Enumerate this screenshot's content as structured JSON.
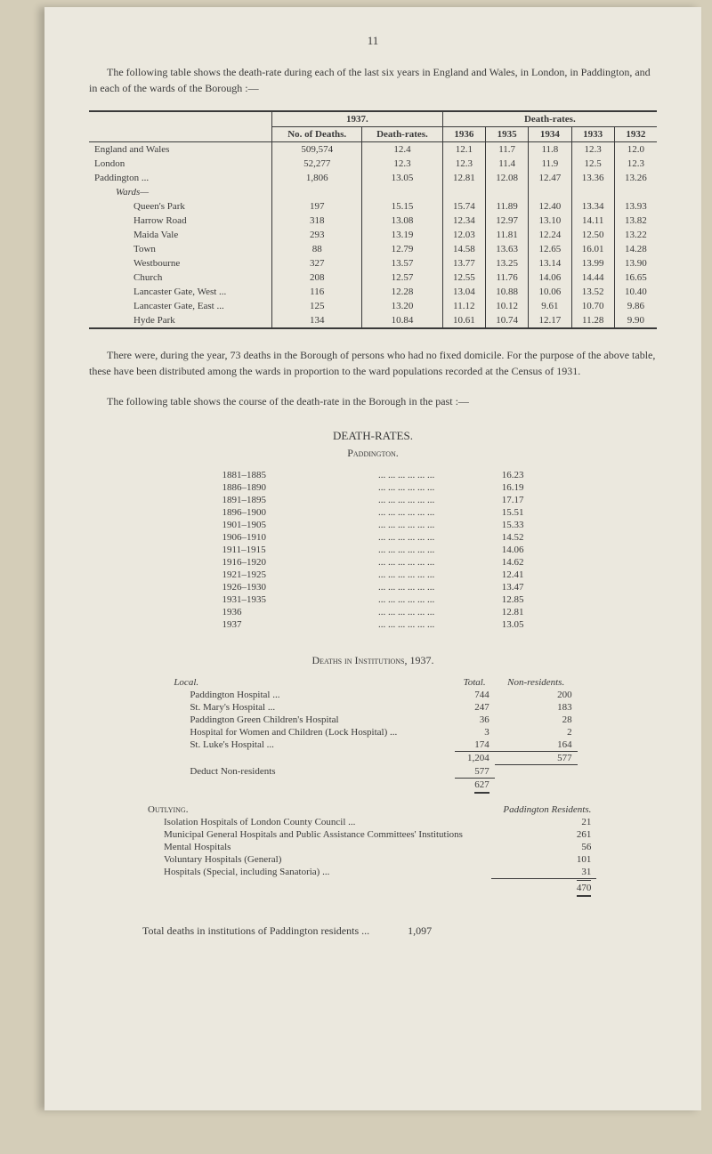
{
  "page_number": "11",
  "intro": "The following table shows the death-rate during each of the last six years in England and Wales, in London, in Paddington, and in each of the wards of the Borough :—",
  "t1": {
    "group1937": "1937.",
    "groupDR": "Death-rates.",
    "cols": [
      "No. of Deaths.",
      "Death-rates.",
      "1936",
      "1935",
      "1934",
      "1933",
      "1932"
    ],
    "wards_label": "Wards—",
    "rows": [
      {
        "lbl": "England and Wales",
        "v": [
          "509,574",
          "12.4",
          "12.1",
          "11.7",
          "11.8",
          "12.3",
          "12.0"
        ]
      },
      {
        "lbl": "London",
        "v": [
          "52,277",
          "12.3",
          "12.3",
          "11.4",
          "11.9",
          "12.5",
          "12.3"
        ]
      },
      {
        "lbl": "Paddington ...",
        "v": [
          "1,806",
          "13.05",
          "12.81",
          "12.08",
          "12.47",
          "13.36",
          "13.26"
        ]
      }
    ],
    "wards": [
      {
        "lbl": "Queen's Park",
        "v": [
          "197",
          "15.15",
          "15.74",
          "11.89",
          "12.40",
          "13.34",
          "13.93"
        ]
      },
      {
        "lbl": "Harrow Road",
        "v": [
          "318",
          "13.08",
          "12.34",
          "12.97",
          "13.10",
          "14.11",
          "13.82"
        ]
      },
      {
        "lbl": "Maida Vale",
        "v": [
          "293",
          "13.19",
          "12.03",
          "11.81",
          "12.24",
          "12.50",
          "13.22"
        ]
      },
      {
        "lbl": "Town",
        "v": [
          "88",
          "12.79",
          "14.58",
          "13.63",
          "12.65",
          "16.01",
          "14.28"
        ]
      },
      {
        "lbl": "Westbourne",
        "v": [
          "327",
          "13.57",
          "13.77",
          "13.25",
          "13.14",
          "13.99",
          "13.90"
        ]
      },
      {
        "lbl": "Church",
        "v": [
          "208",
          "12.57",
          "12.55",
          "11.76",
          "14.06",
          "14.44",
          "16.65"
        ]
      },
      {
        "lbl": "Lancaster Gate, West ...",
        "v": [
          "116",
          "12.28",
          "13.04",
          "10.88",
          "10.06",
          "13.52",
          "10.40"
        ]
      },
      {
        "lbl": "Lancaster Gate, East ...",
        "v": [
          "125",
          "13.20",
          "11.12",
          "10.12",
          "9.61",
          "10.70",
          "9.86"
        ]
      },
      {
        "lbl": "Hyde Park",
        "v": [
          "134",
          "10.84",
          "10.61",
          "10.74",
          "12.17",
          "11.28",
          "9.90"
        ]
      }
    ]
  },
  "para2": "There were, during the year, 73 deaths in the Borough of persons who had no fixed domicile. For the purpose of the above table, these have been distributed among the wards in proportion to the ward populations recorded at the Census of 1931.",
  "para3": "The following table shows the course of the death-rate in the Borough in the past :—",
  "dr_title": "DEATH-RATES.",
  "dr_sub": "Paddington.",
  "t2": [
    {
      "p": "1881–1885",
      "v": "16.23"
    },
    {
      "p": "1886–1890",
      "v": "16.19"
    },
    {
      "p": "1891–1895",
      "v": "17.17"
    },
    {
      "p": "1896–1900",
      "v": "15.51"
    },
    {
      "p": "1901–1905",
      "v": "15.33"
    },
    {
      "p": "1906–1910",
      "v": "14.52"
    },
    {
      "p": "1911–1915",
      "v": "14.06"
    },
    {
      "p": "1916–1920",
      "v": "14.62"
    },
    {
      "p": "1921–1925",
      "v": "12.41"
    },
    {
      "p": "1926–1930",
      "v": "13.47"
    },
    {
      "p": "1931–1935",
      "v": "12.85"
    },
    {
      "p": "1936",
      "v": "12.81"
    },
    {
      "p": "1937",
      "v": "13.05"
    }
  ],
  "inst_title": "Deaths in Institutions, 1937.",
  "t3": {
    "loc": "Local.",
    "tot": "Total.",
    "non": "Non-residents.",
    "rows": [
      {
        "l": "Paddington Hospital ...",
        "t": "744",
        "n": "200"
      },
      {
        "l": "St. Mary's Hospital ...",
        "t": "247",
        "n": "183"
      },
      {
        "l": "Paddington Green Children's Hospital",
        "t": "36",
        "n": "28"
      },
      {
        "l": "Hospital for Women and Children (Lock Hospital) ...",
        "t": "3",
        "n": "2"
      },
      {
        "l": "St. Luke's Hospital ...",
        "t": "174",
        "n": "164"
      }
    ],
    "subtotal": {
      "t": "1,204",
      "n": "577"
    },
    "deduct": {
      "l": "Deduct Non-residents",
      "t": "577"
    },
    "final": "627"
  },
  "out_label": "Outlying.",
  "out_right": "Paddington Residents.",
  "t4": [
    {
      "l": "Isolation Hospitals of London County Council ...",
      "v": "21"
    },
    {
      "l": "Municipal General Hospitals and Public Assistance Committees' Institutions",
      "v": "261"
    },
    {
      "l": "Mental Hospitals",
      "v": "56"
    },
    {
      "l": "Voluntary Hospitals (General)",
      "v": "101"
    },
    {
      "l": "Hospitals (Special, including Sanatoria) ...",
      "v": "31"
    }
  ],
  "t4_total": "470",
  "final_line": "Total deaths in institutions of Paddington residents ...",
  "final_num": "1,097"
}
